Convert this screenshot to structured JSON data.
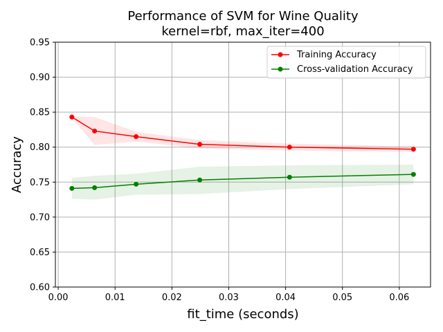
{
  "chart_data": {
    "type": "line",
    "title": "Performance of SVM for Wine Quality",
    "subtitle": "kernel=rbf, max_iter=400",
    "xlabel": "fit_time (seconds)",
    "ylabel": "Accuracy",
    "xlim": [
      -0.0005,
      0.0655
    ],
    "ylim": [
      0.6,
      0.95
    ],
    "xticks": [
      0.0,
      0.01,
      0.02,
      0.03,
      0.04,
      0.05,
      0.06
    ],
    "xtick_labels": [
      "0.00",
      "0.01",
      "0.02",
      "0.03",
      "0.04",
      "0.05",
      "0.06"
    ],
    "yticks": [
      0.6,
      0.65,
      0.7,
      0.75,
      0.8,
      0.85,
      0.9,
      0.95
    ],
    "ytick_labels": [
      "0.60",
      "0.65",
      "0.70",
      "0.75",
      "0.80",
      "0.85",
      "0.90",
      "0.95"
    ],
    "grid": true,
    "legend_position": "top-right",
    "series": [
      {
        "name": "Training Accuracy",
        "color": "#ff0000",
        "band_color": "#ff0000",
        "x": [
          0.0024,
          0.0064,
          0.0137,
          0.0249,
          0.0407,
          0.0625
        ],
        "y": [
          0.843,
          0.823,
          0.815,
          0.804,
          0.8,
          0.797
        ],
        "lower": [
          0.842,
          0.803,
          0.808,
          0.798,
          0.795,
          0.793
        ],
        "upper": [
          0.844,
          0.843,
          0.822,
          0.81,
          0.805,
          0.801
        ]
      },
      {
        "name": "Cross-validation Accuracy",
        "color": "#008000",
        "band_color": "#008000",
        "x": [
          0.0024,
          0.0064,
          0.0137,
          0.0249,
          0.0407,
          0.0625
        ],
        "y": [
          0.741,
          0.742,
          0.747,
          0.753,
          0.757,
          0.761
        ],
        "lower": [
          0.726,
          0.725,
          0.732,
          0.733,
          0.74,
          0.747
        ],
        "upper": [
          0.756,
          0.759,
          0.762,
          0.772,
          0.774,
          0.775
        ]
      }
    ]
  }
}
